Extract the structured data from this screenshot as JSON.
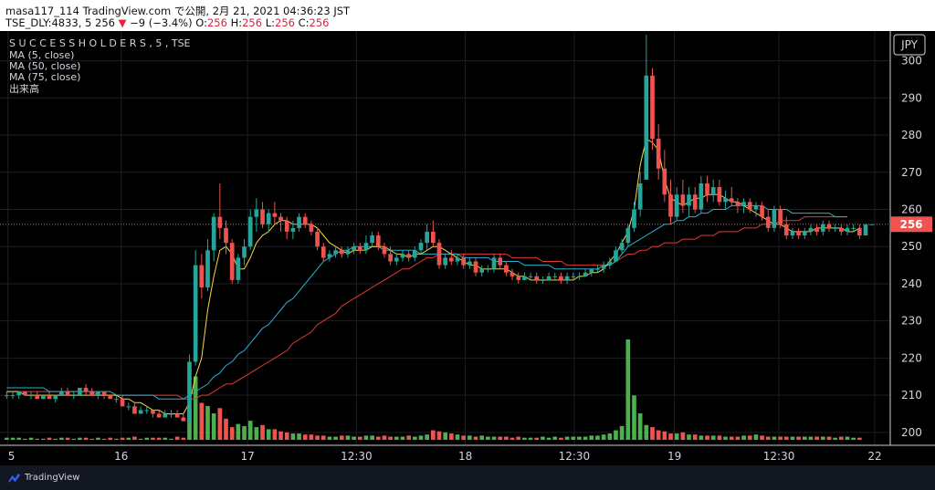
{
  "header": {
    "line1": "masa117_114 TradingView.com で公開, 2月 21, 2021 04:36:23 JST",
    "symbol": "TSE_DLY:4833, 5",
    "price": "256",
    "arrow": "▼",
    "change": "−9 (−3.4%)",
    "o_label": "O:",
    "o_val": "256",
    "h_label": "H:",
    "h_val": "256",
    "l_label": "L:",
    "l_val": "256",
    "c_label": "C:",
    "c_val": "256"
  },
  "legend": {
    "title": "S U C C E S S   H O L D E R S , 5 , TSE",
    "ma5": "MA (5, close)",
    "ma50": "MA (50, close)",
    "ma75": "MA (75, close)",
    "volume": "出来高"
  },
  "currency": "JPY",
  "last_price_label": "256",
  "footer": {
    "brand": "TradingView"
  },
  "colors": {
    "up": "#26a69a",
    "down": "#ef5350",
    "vol_up": "#4caf50",
    "vol_down": "#ef5350",
    "ma5": "#f5d742",
    "ma50": "#26b2d0",
    "ma75": "#e53935",
    "price_label": "#ef5350"
  },
  "chart_data": {
    "type": "candlestick",
    "y_range": [
      198,
      308
    ],
    "y_ticks": [
      200,
      210,
      220,
      230,
      240,
      250,
      260,
      270,
      280,
      290,
      300
    ],
    "x_tick_labels": [
      "5",
      "16",
      "17",
      "12:30",
      "18",
      "12:30",
      "19",
      "12:30",
      "22"
    ],
    "candles": [
      {
        "o": 210,
        "h": 211,
        "l": 209,
        "c": 210
      },
      {
        "o": 210,
        "h": 211,
        "l": 209,
        "c": 210
      },
      {
        "o": 210,
        "h": 211,
        "l": 209,
        "c": 211
      },
      {
        "o": 211,
        "h": 211,
        "l": 210,
        "c": 210
      },
      {
        "o": 210,
        "h": 211,
        "l": 209,
        "c": 210
      },
      {
        "o": 210,
        "h": 211,
        "l": 209,
        "c": 209
      },
      {
        "o": 209,
        "h": 210,
        "l": 209,
        "c": 210
      },
      {
        "o": 210,
        "h": 211,
        "l": 209,
        "c": 209
      },
      {
        "o": 209,
        "h": 210,
        "l": 208,
        "c": 210
      },
      {
        "o": 210,
        "h": 212,
        "l": 210,
        "c": 211
      },
      {
        "o": 211,
        "h": 212,
        "l": 210,
        "c": 210
      },
      {
        "o": 210,
        "h": 211,
        "l": 209,
        "c": 210
      },
      {
        "o": 210,
        "h": 212,
        "l": 210,
        "c": 212
      },
      {
        "o": 212,
        "h": 213,
        "l": 210,
        "c": 211
      },
      {
        "o": 211,
        "h": 212,
        "l": 210,
        "c": 210
      },
      {
        "o": 210,
        "h": 211,
        "l": 209,
        "c": 211
      },
      {
        "o": 211,
        "h": 211,
        "l": 209,
        "c": 210
      },
      {
        "o": 210,
        "h": 210,
        "l": 209,
        "c": 209
      },
      {
        "o": 209,
        "h": 210,
        "l": 208,
        "c": 209
      },
      {
        "o": 209,
        "h": 210,
        "l": 207,
        "c": 207
      },
      {
        "o": 207,
        "h": 208,
        "l": 206,
        "c": 207
      },
      {
        "o": 207,
        "h": 208,
        "l": 205,
        "c": 205
      },
      {
        "o": 205,
        "h": 207,
        "l": 205,
        "c": 206
      },
      {
        "o": 206,
        "h": 207,
        "l": 205,
        "c": 206
      },
      {
        "o": 206,
        "h": 206,
        "l": 204,
        "c": 205
      },
      {
        "o": 205,
        "h": 206,
        "l": 204,
        "c": 204
      },
      {
        "o": 204,
        "h": 206,
        "l": 204,
        "c": 205
      },
      {
        "o": 205,
        "h": 206,
        "l": 204,
        "c": 205
      },
      {
        "o": 205,
        "h": 206,
        "l": 204,
        "c": 204
      },
      {
        "o": 204,
        "h": 205,
        "l": 203,
        "c": 203
      },
      {
        "o": 203,
        "h": 221,
        "l": 202,
        "c": 219
      },
      {
        "o": 219,
        "h": 249,
        "l": 218,
        "c": 245
      },
      {
        "o": 245,
        "h": 248,
        "l": 236,
        "c": 239
      },
      {
        "o": 239,
        "h": 252,
        "l": 238,
        "c": 249
      },
      {
        "o": 249,
        "h": 259,
        "l": 246,
        "c": 258
      },
      {
        "o": 258,
        "h": 267,
        "l": 252,
        "c": 255
      },
      {
        "o": 255,
        "h": 257,
        "l": 248,
        "c": 251
      },
      {
        "o": 251,
        "h": 252,
        "l": 240,
        "c": 241
      },
      {
        "o": 241,
        "h": 248,
        "l": 240,
        "c": 247
      },
      {
        "o": 247,
        "h": 252,
        "l": 245,
        "c": 250
      },
      {
        "o": 250,
        "h": 260,
        "l": 249,
        "c": 258
      },
      {
        "o": 258,
        "h": 263,
        "l": 254,
        "c": 260
      },
      {
        "o": 260,
        "h": 262,
        "l": 255,
        "c": 256
      },
      {
        "o": 256,
        "h": 260,
        "l": 254,
        "c": 259
      },
      {
        "o": 259,
        "h": 262,
        "l": 256,
        "c": 258
      },
      {
        "o": 258,
        "h": 259,
        "l": 254,
        "c": 257
      },
      {
        "o": 257,
        "h": 258,
        "l": 252,
        "c": 254
      },
      {
        "o": 254,
        "h": 257,
        "l": 252,
        "c": 255
      },
      {
        "o": 255,
        "h": 259,
        "l": 254,
        "c": 258
      },
      {
        "o": 258,
        "h": 259,
        "l": 255,
        "c": 256
      },
      {
        "o": 256,
        "h": 257,
        "l": 253,
        "c": 254
      },
      {
        "o": 254,
        "h": 255,
        "l": 249,
        "c": 250
      },
      {
        "o": 250,
        "h": 251,
        "l": 246,
        "c": 247
      },
      {
        "o": 247,
        "h": 249,
        "l": 246,
        "c": 248
      },
      {
        "o": 248,
        "h": 250,
        "l": 247,
        "c": 249
      },
      {
        "o": 249,
        "h": 250,
        "l": 247,
        "c": 248
      },
      {
        "o": 248,
        "h": 250,
        "l": 247,
        "c": 249
      },
      {
        "o": 249,
        "h": 251,
        "l": 248,
        "c": 250
      },
      {
        "o": 250,
        "h": 251,
        "l": 248,
        "c": 249
      },
      {
        "o": 249,
        "h": 253,
        "l": 248,
        "c": 251
      },
      {
        "o": 251,
        "h": 254,
        "l": 250,
        "c": 253
      },
      {
        "o": 253,
        "h": 254,
        "l": 249,
        "c": 250
      },
      {
        "o": 250,
        "h": 251,
        "l": 247,
        "c": 248
      },
      {
        "o": 248,
        "h": 250,
        "l": 245,
        "c": 246
      },
      {
        "o": 246,
        "h": 248,
        "l": 245,
        "c": 247
      },
      {
        "o": 247,
        "h": 249,
        "l": 246,
        "c": 248
      },
      {
        "o": 248,
        "h": 249,
        "l": 246,
        "c": 247
      },
      {
        "o": 247,
        "h": 250,
        "l": 246,
        "c": 249
      },
      {
        "o": 249,
        "h": 252,
        "l": 248,
        "c": 251
      },
      {
        "o": 251,
        "h": 256,
        "l": 249,
        "c": 254
      },
      {
        "o": 254,
        "h": 257,
        "l": 250,
        "c": 251
      },
      {
        "o": 251,
        "h": 252,
        "l": 244,
        "c": 245
      },
      {
        "o": 245,
        "h": 248,
        "l": 244,
        "c": 247
      },
      {
        "o": 247,
        "h": 249,
        "l": 245,
        "c": 246
      },
      {
        "o": 246,
        "h": 248,
        "l": 245,
        "c": 247
      },
      {
        "o": 247,
        "h": 248,
        "l": 244,
        "c": 245
      },
      {
        "o": 245,
        "h": 247,
        "l": 244,
        "c": 246
      },
      {
        "o": 246,
        "h": 247,
        "l": 242,
        "c": 243
      },
      {
        "o": 243,
        "h": 245,
        "l": 242,
        "c": 244
      },
      {
        "o": 244,
        "h": 245,
        "l": 243,
        "c": 244
      },
      {
        "o": 244,
        "h": 248,
        "l": 243,
        "c": 247
      },
      {
        "o": 247,
        "h": 248,
        "l": 244,
        "c": 245
      },
      {
        "o": 245,
        "h": 246,
        "l": 242,
        "c": 243
      },
      {
        "o": 243,
        "h": 244,
        "l": 241,
        "c": 242
      },
      {
        "o": 242,
        "h": 243,
        "l": 240,
        "c": 241
      },
      {
        "o": 241,
        "h": 243,
        "l": 241,
        "c": 242
      },
      {
        "o": 242,
        "h": 243,
        "l": 241,
        "c": 242
      },
      {
        "o": 242,
        "h": 243,
        "l": 240,
        "c": 241
      },
      {
        "o": 241,
        "h": 242,
        "l": 240,
        "c": 241
      },
      {
        "o": 241,
        "h": 243,
        "l": 241,
        "c": 242
      },
      {
        "o": 242,
        "h": 243,
        "l": 241,
        "c": 242
      },
      {
        "o": 242,
        "h": 243,
        "l": 240,
        "c": 241
      },
      {
        "o": 241,
        "h": 243,
        "l": 240,
        "c": 242
      },
      {
        "o": 242,
        "h": 243,
        "l": 241,
        "c": 242
      },
      {
        "o": 242,
        "h": 243,
        "l": 241,
        "c": 242
      },
      {
        "o": 242,
        "h": 244,
        "l": 242,
        "c": 243
      },
      {
        "o": 243,
        "h": 244,
        "l": 242,
        "c": 244
      },
      {
        "o": 244,
        "h": 245,
        "l": 243,
        "c": 244
      },
      {
        "o": 244,
        "h": 246,
        "l": 243,
        "c": 245
      },
      {
        "o": 245,
        "h": 247,
        "l": 244,
        "c": 246
      },
      {
        "o": 246,
        "h": 250,
        "l": 246,
        "c": 249
      },
      {
        "o": 249,
        "h": 252,
        "l": 248,
        "c": 251
      },
      {
        "o": 251,
        "h": 256,
        "l": 250,
        "c": 255
      },
      {
        "o": 255,
        "h": 262,
        "l": 254,
        "c": 260
      },
      {
        "o": 260,
        "h": 270,
        "l": 258,
        "c": 267
      },
      {
        "o": 268,
        "h": 307,
        "l": 268,
        "c": 296
      },
      {
        "o": 296,
        "h": 298,
        "l": 276,
        "c": 279
      },
      {
        "o": 279,
        "h": 283,
        "l": 268,
        "c": 271
      },
      {
        "o": 271,
        "h": 276,
        "l": 262,
        "c": 264
      },
      {
        "o": 264,
        "h": 268,
        "l": 256,
        "c": 258
      },
      {
        "o": 258,
        "h": 266,
        "l": 257,
        "c": 264
      },
      {
        "o": 264,
        "h": 268,
        "l": 259,
        "c": 261
      },
      {
        "o": 261,
        "h": 266,
        "l": 258,
        "c": 264
      },
      {
        "o": 264,
        "h": 266,
        "l": 259,
        "c": 260
      },
      {
        "o": 260,
        "h": 269,
        "l": 259,
        "c": 267
      },
      {
        "o": 267,
        "h": 269,
        "l": 262,
        "c": 264
      },
      {
        "o": 264,
        "h": 268,
        "l": 262,
        "c": 266
      },
      {
        "o": 266,
        "h": 268,
        "l": 261,
        "c": 262
      },
      {
        "o": 262,
        "h": 265,
        "l": 260,
        "c": 263
      },
      {
        "o": 263,
        "h": 266,
        "l": 261,
        "c": 262
      },
      {
        "o": 262,
        "h": 263,
        "l": 259,
        "c": 261
      },
      {
        "o": 261,
        "h": 263,
        "l": 259,
        "c": 262
      },
      {
        "o": 262,
        "h": 263,
        "l": 259,
        "c": 260
      },
      {
        "o": 260,
        "h": 262,
        "l": 258,
        "c": 261
      },
      {
        "o": 261,
        "h": 262,
        "l": 257,
        "c": 258
      },
      {
        "o": 258,
        "h": 260,
        "l": 254,
        "c": 255
      },
      {
        "o": 255,
        "h": 261,
        "l": 254,
        "c": 260
      },
      {
        "o": 260,
        "h": 261,
        "l": 255,
        "c": 256
      },
      {
        "o": 256,
        "h": 258,
        "l": 252,
        "c": 253
      },
      {
        "o": 253,
        "h": 255,
        "l": 252,
        "c": 254
      },
      {
        "o": 254,
        "h": 255,
        "l": 252,
        "c": 253
      },
      {
        "o": 253,
        "h": 255,
        "l": 252,
        "c": 254
      },
      {
        "o": 254,
        "h": 256,
        "l": 253,
        "c": 255
      },
      {
        "o": 255,
        "h": 256,
        "l": 253,
        "c": 254
      },
      {
        "o": 254,
        "h": 257,
        "l": 253,
        "c": 256
      },
      {
        "o": 256,
        "h": 257,
        "l": 254,
        "c": 255
      },
      {
        "o": 255,
        "h": 256,
        "l": 254,
        "c": 255
      },
      {
        "o": 255,
        "h": 256,
        "l": 253,
        "c": 254
      },
      {
        "o": 254,
        "h": 256,
        "l": 253,
        "c": 255
      },
      {
        "o": 255,
        "h": 256,
        "l": 254,
        "c": 255
      },
      {
        "o": 255,
        "h": 256,
        "l": 252,
        "c": 253
      },
      {
        "o": 253,
        "h": 256,
        "l": 253,
        "c": 256
      },
      {
        "o": 256,
        "h": 256,
        "l": 256,
        "c": 256
      }
    ],
    "volume": [
      2,
      2,
      2,
      1,
      2,
      1,
      1,
      2,
      1,
      2,
      2,
      1,
      2,
      2,
      1,
      2,
      1,
      2,
      1,
      2,
      2,
      3,
      1,
      2,
      2,
      2,
      2,
      1,
      3,
      2,
      30,
      60,
      35,
      32,
      25,
      30,
      20,
      12,
      15,
      13,
      18,
      12,
      14,
      10,
      10,
      8,
      7,
      6,
      6,
      5,
      5,
      4,
      4,
      3,
      3,
      4,
      4,
      3,
      3,
      4,
      4,
      3,
      4,
      3,
      3,
      3,
      4,
      3,
      4,
      5,
      9,
      8,
      7,
      6,
      5,
      4,
      4,
      3,
      4,
      3,
      3,
      3,
      3,
      2,
      3,
      2,
      2,
      2,
      3,
      2,
      3,
      2,
      3,
      3,
      3,
      3,
      4,
      4,
      5,
      6,
      9,
      13,
      95,
      42,
      25,
      14,
      12,
      9,
      8,
      6,
      6,
      7,
      5,
      5,
      4,
      4,
      4,
      4,
      3,
      3,
      3,
      4,
      4,
      5,
      4,
      3,
      3,
      3,
      3,
      3,
      3,
      3,
      3,
      3,
      3,
      3,
      2,
      3,
      3,
      2,
      2
    ],
    "ma5": [
      211,
      211,
      211,
      210,
      210,
      210,
      210,
      210,
      210,
      210,
      210,
      210,
      210,
      210,
      210,
      210,
      210,
      210,
      210,
      209,
      209,
      208,
      208,
      207,
      206,
      206,
      205,
      205,
      205,
      205,
      208,
      215,
      220,
      233,
      242,
      249,
      250,
      248,
      244,
      244,
      247,
      251,
      253,
      254,
      256,
      257,
      257,
      256,
      256,
      256,
      256,
      255,
      253,
      251,
      250,
      249,
      248,
      249,
      249,
      249,
      250,
      250,
      250,
      249,
      248,
      248,
      247,
      248,
      248,
      249,
      250,
      250,
      249,
      248,
      247,
      246,
      245,
      245,
      244,
      244,
      244,
      244,
      244,
      243,
      242,
      242,
      241,
      241,
      241,
      241,
      241,
      241,
      241,
      241,
      242,
      242,
      243,
      243,
      244,
      246,
      248,
      251,
      254,
      260,
      272,
      279,
      278,
      276,
      268,
      263,
      262,
      261,
      262,
      263,
      263,
      264,
      264,
      264,
      263,
      262,
      262,
      261,
      260,
      259,
      258,
      257,
      256,
      256,
      255,
      254,
      254,
      254,
      254,
      255,
      255,
      255,
      255,
      255,
      254,
      254,
      255
    ],
    "ma50": [
      212,
      212,
      212,
      212,
      212,
      212,
      212,
      211,
      211,
      211,
      211,
      211,
      211,
      211,
      211,
      211,
      211,
      211,
      210,
      210,
      210,
      210,
      210,
      210,
      210,
      209,
      209,
      209,
      209,
      209,
      210,
      211,
      212,
      213,
      215,
      216,
      218,
      219,
      221,
      222,
      224,
      226,
      228,
      229,
      231,
      233,
      235,
      236,
      238,
      240,
      242,
      244,
      246,
      247,
      248,
      249,
      249,
      250,
      250,
      250,
      250,
      250,
      249,
      249,
      249,
      249,
      249,
      249,
      248,
      248,
      248,
      248,
      248,
      248,
      248,
      247,
      247,
      247,
      247,
      247,
      246,
      246,
      246,
      246,
      246,
      245,
      245,
      245,
      245,
      245,
      244,
      244,
      244,
      244,
      244,
      244,
      244,
      244,
      245,
      245,
      246,
      248,
      250,
      251,
      252,
      253,
      254,
      255,
      256,
      256,
      257,
      257,
      258,
      258,
      259,
      259,
      260,
      260,
      260,
      261,
      261,
      261,
      261,
      261,
      261,
      260,
      260,
      260,
      260,
      259,
      259,
      259,
      259,
      259,
      259,
      259,
      258,
      258,
      258
    ],
    "ma75": [
      211,
      211,
      211,
      211,
      211,
      211,
      211,
      211,
      211,
      211,
      211,
      211,
      211,
      211,
      211,
      210,
      210,
      210,
      210,
      210,
      210,
      210,
      210,
      210,
      210,
      210,
      210,
      210,
      210,
      209,
      209,
      209,
      210,
      210,
      211,
      212,
      213,
      213,
      214,
      215,
      216,
      217,
      218,
      219,
      220,
      221,
      222,
      224,
      225,
      226,
      227,
      229,
      230,
      231,
      232,
      234,
      235,
      236,
      237,
      238,
      239,
      240,
      241,
      242,
      243,
      244,
      244,
      245,
      246,
      247,
      247,
      248,
      248,
      248,
      248,
      248,
      248,
      248,
      248,
      248,
      248,
      248,
      248,
      247,
      247,
      247,
      247,
      247,
      246,
      246,
      246,
      246,
      245,
      245,
      245,
      245,
      245,
      245,
      245,
      245,
      246,
      247,
      248,
      248,
      249,
      249,
      250,
      250,
      251,
      251,
      251,
      252,
      252,
      252,
      253,
      253,
      253,
      254,
      254,
      254,
      254,
      255,
      255,
      255,
      256,
      256,
      256,
      257,
      257,
      257,
      257,
      258,
      258,
      258,
      258,
      258,
      258,
      258,
      258
    ]
  }
}
